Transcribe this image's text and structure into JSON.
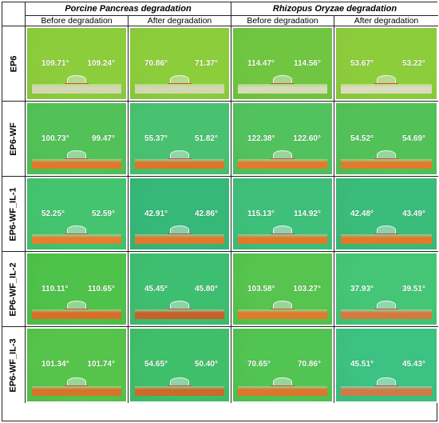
{
  "header": {
    "group1": "Porcine Pancreas degradation",
    "group2": "Rhizopus Oryzae degradation",
    "sub": [
      "Before degradation",
      "After degradation",
      "Before degradation",
      "After degradation"
    ]
  },
  "colors": {
    "bg_light": "#7fd144",
    "bg_green": "#4fc46a",
    "bg_teal": "#3dbf88",
    "substrate_clear": "#d9dcc0",
    "substrate_orange": "#e07a2a"
  },
  "rows": [
    {
      "label": "EP6",
      "cells": [
        {
          "left": "109.71°",
          "right": "109.24°",
          "bg": "#8ccd3c",
          "substrate": "#d4d7b4"
        },
        {
          "left": "70.86°",
          "right": "71.37°",
          "bg": "#8ccd3c",
          "substrate": "#d4d7b4"
        },
        {
          "left": "114.47°",
          "right": "114.56°",
          "bg": "#70c640",
          "substrate": "#d8dab8"
        },
        {
          "left": "53.67°",
          "right": "53.22°",
          "bg": "#8ccd3c",
          "substrate": "#dcdcc0"
        }
      ]
    },
    {
      "label": "EP6-WF",
      "cells": [
        {
          "left": "100.73°",
          "right": "99.47°",
          "bg": "#52c258",
          "substrate": "#e0782c"
        },
        {
          "left": "55.37°",
          "right": "51.82°",
          "bg": "#48c270",
          "substrate": "#de7428"
        },
        {
          "left": "122.38°",
          "right": "122.60°",
          "bg": "#52c25e",
          "substrate": "#e07a2c"
        },
        {
          "left": "54.52°",
          "right": "54.69°",
          "bg": "#52c258",
          "substrate": "#e07a2c"
        }
      ]
    },
    {
      "label": "EP6-WF_IL-1",
      "cells": [
        {
          "left": "52.25°",
          "right": "52.59°",
          "bg": "#44c46e",
          "substrate": "#e2802e"
        },
        {
          "left": "42.91°",
          "right": "42.86°",
          "bg": "#36b878",
          "substrate": "#e07a2a"
        },
        {
          "left": "115.13°",
          "right": "114.92°",
          "bg": "#3ec07a",
          "substrate": "#e07a2a"
        },
        {
          "left": "42.48°",
          "right": "43.49°",
          "bg": "#3abc7a",
          "substrate": "#e07a2a"
        }
      ]
    },
    {
      "label": "EP6-WF_IL-2",
      "cells": [
        {
          "left": "110.11°",
          "right": "110.65°",
          "bg": "#4ec24a",
          "substrate": "#d86e28"
        },
        {
          "left": "45.45°",
          "right": "45.80°",
          "bg": "#3ebe70",
          "substrate": "#c8602a"
        },
        {
          "left": "103.58°",
          "right": "103.27°",
          "bg": "#56c44e",
          "substrate": "#de7a2c"
        },
        {
          "left": "37.93°",
          "right": "39.51°",
          "bg": "#44c676",
          "substrate": "#d47a40"
        }
      ]
    },
    {
      "label": "EP6-WF_IL-3",
      "cells": [
        {
          "left": "101.34°",
          "right": "101.74°",
          "bg": "#56c44a",
          "substrate": "#d8742a"
        },
        {
          "left": "54.65°",
          "right": "50.40°",
          "bg": "#40bf6a",
          "substrate": "#cc6a2a"
        },
        {
          "left": "70.65°",
          "right": "70.86°",
          "bg": "#52c452",
          "substrate": "#dc762c"
        },
        {
          "left": "45.51°",
          "right": "45.43°",
          "bg": "#3cc282",
          "substrate": "#d07a48"
        }
      ]
    }
  ]
}
